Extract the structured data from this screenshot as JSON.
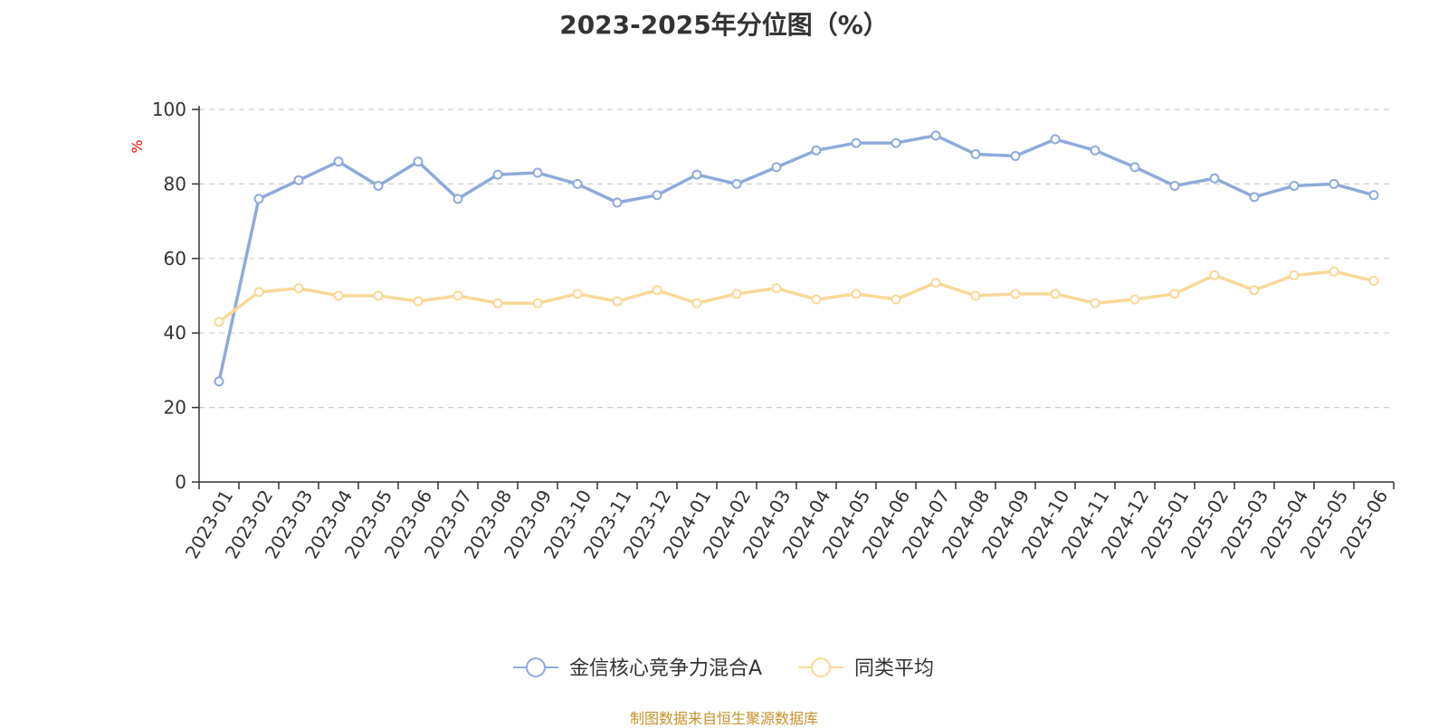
{
  "chart_data": {
    "type": "line",
    "title": "2023-2025年分位图（%）",
    "ylabel": "%",
    "xlabel": "",
    "ylim": [
      0,
      100
    ],
    "yticks": [
      0,
      20,
      40,
      60,
      80,
      100
    ],
    "grid": true,
    "legend_position": "bottom-center",
    "categories": [
      "2023-01",
      "2023-02",
      "2023-03",
      "2023-04",
      "2023-05",
      "2023-06",
      "2023-07",
      "2023-08",
      "2023-09",
      "2023-10",
      "2023-11",
      "2023-12",
      "2024-01",
      "2024-02",
      "2024-03",
      "2024-04",
      "2024-05",
      "2024-06",
      "2024-07",
      "2024-08",
      "2024-09",
      "2024-10",
      "2024-11",
      "2024-12",
      "2025-01",
      "2025-02",
      "2025-03",
      "2025-04",
      "2025-05",
      "2025-06"
    ],
    "series": [
      {
        "name": "金信核心竞争力混合A",
        "color": "#8eaadb",
        "values": [
          27,
          76,
          81,
          86,
          79.5,
          86,
          76,
          82.5,
          83,
          80,
          75,
          77,
          82.5,
          80,
          84.5,
          89,
          91,
          91,
          93,
          88,
          87.5,
          92,
          89,
          84.5,
          79.5,
          81.5,
          76.5,
          79.5,
          80,
          77
        ]
      },
      {
        "name": "同类平均",
        "color": "#f9d898",
        "values": [
          43,
          51,
          52,
          50,
          50,
          48.5,
          50,
          48,
          48,
          50.5,
          48.5,
          51.5,
          48,
          50.5,
          52,
          49,
          50.5,
          49,
          53.5,
          50,
          50.5,
          50.5,
          48,
          49,
          50.5,
          55.5,
          51.5,
          55.5,
          56.5,
          54
        ]
      }
    ]
  },
  "footer": {
    "source": "制图数据来自恒生聚源数据库"
  }
}
